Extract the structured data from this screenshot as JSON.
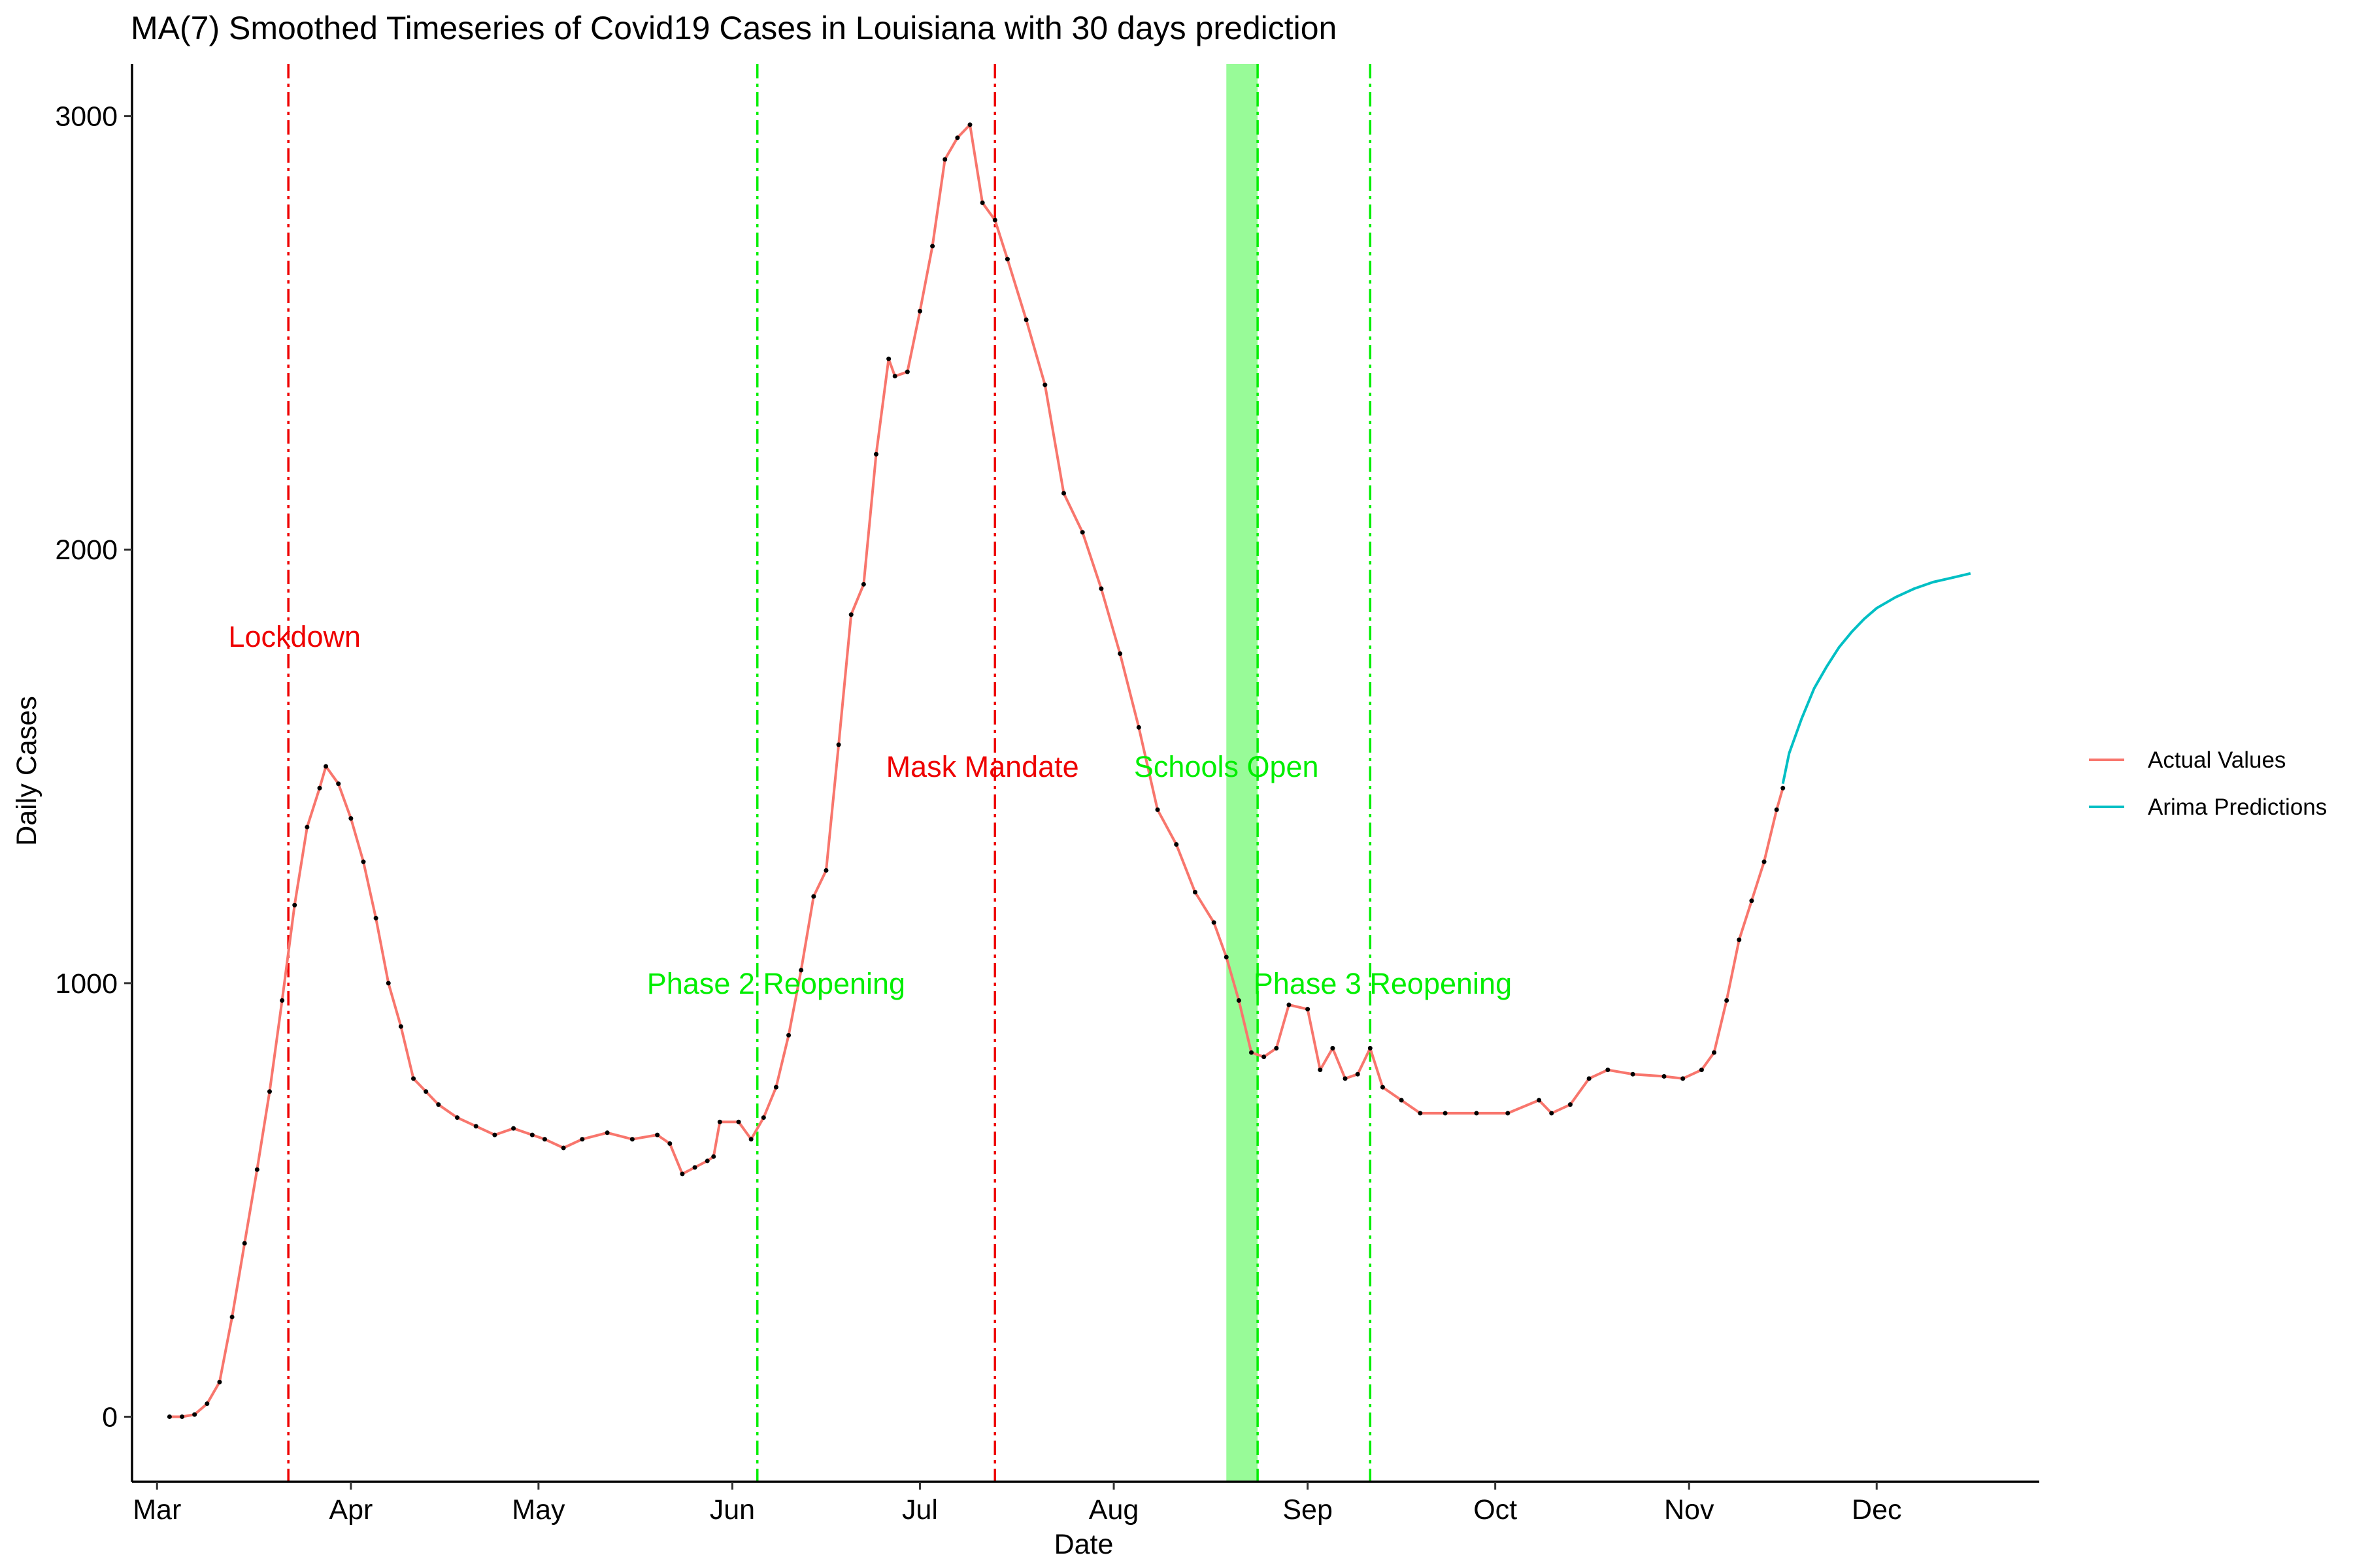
{
  "chart_data": {
    "type": "line",
    "title": "MA(7) Smoothed Timeseries of Covid19 Cases in Louisiana with 30 days prediction",
    "xlabel": "Date",
    "ylabel": "Daily Cases",
    "x_type": "date",
    "xlim": [
      "2020-02-26",
      "2020-12-27"
    ],
    "ylim": [
      -150,
      3120
    ],
    "x_ticks": [
      {
        "date": "2020-03-01",
        "label": "Mar"
      },
      {
        "date": "2020-04-01",
        "label": "Apr"
      },
      {
        "date": "2020-05-01",
        "label": "May"
      },
      {
        "date": "2020-06-01",
        "label": "Jun"
      },
      {
        "date": "2020-07-01",
        "label": "Jul"
      },
      {
        "date": "2020-08-01",
        "label": "Aug"
      },
      {
        "date": "2020-09-01",
        "label": "Sep"
      },
      {
        "date": "2020-10-01",
        "label": "Oct"
      },
      {
        "date": "2020-11-01",
        "label": "Nov"
      },
      {
        "date": "2020-12-01",
        "label": "Dec"
      }
    ],
    "y_ticks": [
      0,
      1000,
      2000,
      3000
    ],
    "grid": false,
    "legend": {
      "position": "right"
    },
    "series": [
      {
        "name": "Actual Values",
        "color": "#F8766D",
        "markers": true,
        "marker_color": "#000000",
        "points": [
          [
            "2020-03-03",
            0
          ],
          [
            "2020-03-05",
            0
          ],
          [
            "2020-03-07",
            5
          ],
          [
            "2020-03-09",
            30
          ],
          [
            "2020-03-11",
            80
          ],
          [
            "2020-03-13",
            230
          ],
          [
            "2020-03-15",
            400
          ],
          [
            "2020-03-17",
            570
          ],
          [
            "2020-03-19",
            750
          ],
          [
            "2020-03-21",
            960
          ],
          [
            "2020-03-23",
            1180
          ],
          [
            "2020-03-25",
            1360
          ],
          [
            "2020-03-27",
            1450
          ],
          [
            "2020-03-28",
            1500
          ],
          [
            "2020-03-30",
            1460
          ],
          [
            "2020-04-01",
            1380
          ],
          [
            "2020-04-03",
            1280
          ],
          [
            "2020-04-05",
            1150
          ],
          [
            "2020-04-07",
            1000
          ],
          [
            "2020-04-09",
            900
          ],
          [
            "2020-04-11",
            780
          ],
          [
            "2020-04-13",
            750
          ],
          [
            "2020-04-15",
            720
          ],
          [
            "2020-04-18",
            690
          ],
          [
            "2020-04-21",
            670
          ],
          [
            "2020-04-24",
            650
          ],
          [
            "2020-04-27",
            665
          ],
          [
            "2020-04-30",
            650
          ],
          [
            "2020-05-02",
            640
          ],
          [
            "2020-05-05",
            620
          ],
          [
            "2020-05-08",
            640
          ],
          [
            "2020-05-12",
            655
          ],
          [
            "2020-05-16",
            640
          ],
          [
            "2020-05-20",
            650
          ],
          [
            "2020-05-22",
            630
          ],
          [
            "2020-05-24",
            560
          ],
          [
            "2020-05-26",
            575
          ],
          [
            "2020-05-28",
            590
          ],
          [
            "2020-05-29",
            600
          ],
          [
            "2020-05-30",
            680
          ],
          [
            "2020-06-02",
            680
          ],
          [
            "2020-06-04",
            640
          ],
          [
            "2020-06-06",
            690
          ],
          [
            "2020-06-08",
            760
          ],
          [
            "2020-06-10",
            880
          ],
          [
            "2020-06-12",
            1030
          ],
          [
            "2020-06-14",
            1200
          ],
          [
            "2020-06-16",
            1260
          ],
          [
            "2020-06-18",
            1550
          ],
          [
            "2020-06-20",
            1850
          ],
          [
            "2020-06-22",
            1920
          ],
          [
            "2020-06-24",
            2220
          ],
          [
            "2020-06-26",
            2440
          ],
          [
            "2020-06-27",
            2400
          ],
          [
            "2020-06-29",
            2410
          ],
          [
            "2020-07-01",
            2550
          ],
          [
            "2020-07-03",
            2700
          ],
          [
            "2020-07-05",
            2900
          ],
          [
            "2020-07-07",
            2950
          ],
          [
            "2020-07-09",
            2980
          ],
          [
            "2020-07-11",
            2800
          ],
          [
            "2020-07-13",
            2760
          ],
          [
            "2020-07-15",
            2670
          ],
          [
            "2020-07-18",
            2530
          ],
          [
            "2020-07-21",
            2380
          ],
          [
            "2020-07-24",
            2130
          ],
          [
            "2020-07-27",
            2040
          ],
          [
            "2020-07-30",
            1910
          ],
          [
            "2020-08-02",
            1760
          ],
          [
            "2020-08-05",
            1590
          ],
          [
            "2020-08-08",
            1400
          ],
          [
            "2020-08-11",
            1320
          ],
          [
            "2020-08-14",
            1210
          ],
          [
            "2020-08-17",
            1140
          ],
          [
            "2020-08-19",
            1060
          ],
          [
            "2020-08-21",
            960
          ],
          [
            "2020-08-23",
            840
          ],
          [
            "2020-08-25",
            830
          ],
          [
            "2020-08-27",
            850
          ],
          [
            "2020-08-29",
            950
          ],
          [
            "2020-09-01",
            940
          ],
          [
            "2020-09-03",
            800
          ],
          [
            "2020-09-05",
            850
          ],
          [
            "2020-09-07",
            780
          ],
          [
            "2020-09-09",
            790
          ],
          [
            "2020-09-11",
            850
          ],
          [
            "2020-09-13",
            760
          ],
          [
            "2020-09-16",
            730
          ],
          [
            "2020-09-19",
            700
          ],
          [
            "2020-09-23",
            700
          ],
          [
            "2020-09-28",
            700
          ],
          [
            "2020-10-03",
            700
          ],
          [
            "2020-10-08",
            730
          ],
          [
            "2020-10-10",
            700
          ],
          [
            "2020-10-13",
            720
          ],
          [
            "2020-10-16",
            780
          ],
          [
            "2020-10-19",
            800
          ],
          [
            "2020-10-23",
            790
          ],
          [
            "2020-10-28",
            785
          ],
          [
            "2020-10-31",
            780
          ],
          [
            "2020-11-03",
            800
          ],
          [
            "2020-11-05",
            840
          ],
          [
            "2020-11-07",
            960
          ],
          [
            "2020-11-09",
            1100
          ],
          [
            "2020-11-11",
            1190
          ],
          [
            "2020-11-13",
            1280
          ],
          [
            "2020-11-15",
            1400
          ],
          [
            "2020-11-16",
            1450
          ]
        ]
      },
      {
        "name": "Arima Predictions",
        "color": "#00BFC4",
        "markers": false,
        "points": [
          [
            "2020-11-16",
            1460
          ],
          [
            "2020-11-17",
            1530
          ],
          [
            "2020-11-19",
            1610
          ],
          [
            "2020-11-21",
            1680
          ],
          [
            "2020-11-23",
            1730
          ],
          [
            "2020-11-25",
            1775
          ],
          [
            "2020-11-27",
            1810
          ],
          [
            "2020-11-29",
            1840
          ],
          [
            "2020-12-01",
            1865
          ],
          [
            "2020-12-04",
            1890
          ],
          [
            "2020-12-07",
            1910
          ],
          [
            "2020-12-10",
            1925
          ],
          [
            "2020-12-13",
            1935
          ],
          [
            "2020-12-16",
            1945
          ]
        ]
      }
    ],
    "annotations": [
      {
        "text": "Lockdown",
        "date": "2020-03-23",
        "y": 1800,
        "color": "#EE0000"
      },
      {
        "text": "Mask Mandate",
        "date": "2020-07-11",
        "y": 1500,
        "color": "#EE0000"
      },
      {
        "text": "Schools Open",
        "date": "2020-08-19",
        "y": 1500,
        "color": "#00EE00"
      },
      {
        "text": "Phase 2 Reopening",
        "date": "2020-06-08",
        "y": 1000,
        "color": "#00EE00"
      },
      {
        "text": "Phase 3 Reopening",
        "date": "2020-09-13",
        "y": 1000,
        "color": "#00EE00"
      }
    ],
    "vlines": [
      {
        "date": "2020-03-22",
        "color": "#EE0000"
      },
      {
        "date": "2020-06-05",
        "color": "#00EE00"
      },
      {
        "date": "2020-07-13",
        "color": "#EE0000"
      },
      {
        "date": "2020-08-24",
        "color": "#00EE00"
      },
      {
        "date": "2020-09-11",
        "color": "#00EE00"
      }
    ],
    "shaded_regions": [
      {
        "from": "2020-08-19",
        "to": "2020-08-24",
        "color": "#98FB98"
      }
    ]
  }
}
